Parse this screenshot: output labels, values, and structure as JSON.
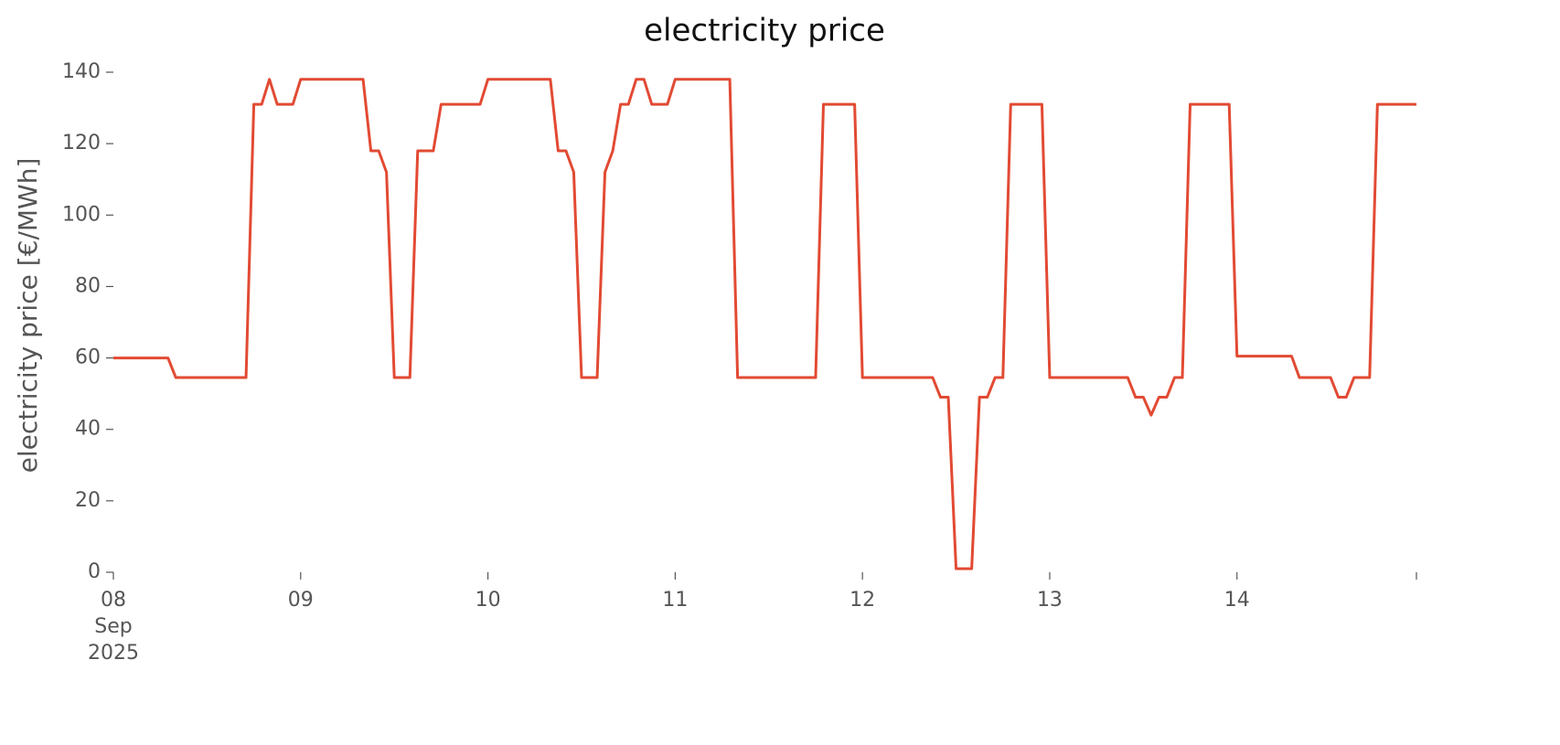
{
  "chart_data": {
    "type": "line",
    "title": "electricity price",
    "ylabel": "electricity price [€/MWh]",
    "x": [
      "2025-09-08T00:00",
      "2025-09-08T07:00",
      "2025-09-08T08:00",
      "2025-09-08T17:00",
      "2025-09-08T18:00",
      "2025-09-08T19:00",
      "2025-09-08T20:00",
      "2025-09-08T21:00",
      "2025-09-08T23:00",
      "2025-09-09T00:00",
      "2025-09-09T08:00",
      "2025-09-09T09:00",
      "2025-09-09T10:00",
      "2025-09-09T11:00",
      "2025-09-09T12:00",
      "2025-09-09T14:00",
      "2025-09-09T15:00",
      "2025-09-09T17:00",
      "2025-09-09T18:00",
      "2025-09-09T23:00",
      "2025-09-10T00:00",
      "2025-09-10T08:00",
      "2025-09-10T09:00",
      "2025-09-10T10:00",
      "2025-09-10T11:00",
      "2025-09-10T12:00",
      "2025-09-10T14:00",
      "2025-09-10T15:00",
      "2025-09-10T16:00",
      "2025-09-10T17:00",
      "2025-09-10T18:00",
      "2025-09-10T19:00",
      "2025-09-10T20:00",
      "2025-09-10T21:00",
      "2025-09-10T23:00",
      "2025-09-11T00:00",
      "2025-09-11T07:00",
      "2025-09-11T08:00",
      "2025-09-11T18:00",
      "2025-09-11T19:00",
      "2025-09-11T23:00",
      "2025-09-12T00:00",
      "2025-09-12T09:00",
      "2025-09-12T10:00",
      "2025-09-12T11:00",
      "2025-09-12T12:00",
      "2025-09-12T14:00",
      "2025-09-12T15:00",
      "2025-09-12T16:00",
      "2025-09-12T17:00",
      "2025-09-12T18:00",
      "2025-09-12T19:00",
      "2025-09-12T23:00",
      "2025-09-13T00:00",
      "2025-09-13T10:00",
      "2025-09-13T11:00",
      "2025-09-13T12:00",
      "2025-09-13T13:00",
      "2025-09-13T14:00",
      "2025-09-13T15:00",
      "2025-09-13T16:00",
      "2025-09-13T17:00",
      "2025-09-13T18:00",
      "2025-09-13T23:00",
      "2025-09-14T00:00",
      "2025-09-14T07:00",
      "2025-09-14T08:00",
      "2025-09-14T12:00",
      "2025-09-14T13:00",
      "2025-09-14T14:00",
      "2025-09-14T15:00",
      "2025-09-14T17:00",
      "2025-09-14T18:00",
      "2025-09-14T23:00"
    ],
    "series": [
      {
        "name": "electricity price",
        "color": "#e24a33",
        "values": [
          60,
          60,
          54.5,
          54.5,
          131,
          131,
          138,
          131,
          131,
          138,
          138,
          118,
          118,
          112,
          54.5,
          54.5,
          118,
          118,
          131,
          131,
          138,
          138,
          118,
          118,
          112,
          54.5,
          54.5,
          112,
          118,
          131,
          131,
          138,
          138,
          131,
          131,
          138,
          138,
          54.5,
          54.5,
          131,
          131,
          54.5,
          54.5,
          49,
          49,
          1,
          1,
          49,
          49,
          54.5,
          54.5,
          131,
          131,
          54.5,
          54.5,
          49,
          49,
          44,
          49,
          49,
          54.5,
          54.5,
          131,
          131,
          60.5,
          60.5,
          54.5,
          54.5,
          49,
          49,
          54.5,
          54.5,
          131,
          131
        ]
      }
    ],
    "xlim": [
      "2025-09-08T00:00",
      "2025-09-14T23:00"
    ],
    "xticks": [
      {
        "value": "2025-09-08T00:00",
        "label": "08\nSep\n2025"
      },
      {
        "value": "2025-09-09T00:00",
        "label": "09"
      },
      {
        "value": "2025-09-10T00:00",
        "label": "10"
      },
      {
        "value": "2025-09-11T00:00",
        "label": "11"
      },
      {
        "value": "2025-09-12T00:00",
        "label": "12"
      },
      {
        "value": "2025-09-13T00:00",
        "label": "13"
      },
      {
        "value": "2025-09-14T00:00",
        "label": "14"
      },
      {
        "value": "2025-09-14T23:00",
        "label": null
      }
    ],
    "ylim": [
      0,
      140
    ],
    "yticks": [
      0,
      20,
      40,
      60,
      80,
      100,
      120,
      140
    ],
    "grid": false
  }
}
